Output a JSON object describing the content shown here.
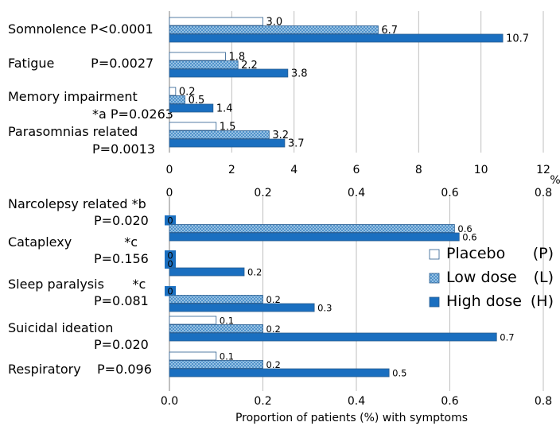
{
  "colors": {
    "placebo_fill": "#ffffff",
    "low_fill": "#7fb3dd",
    "high_fill": "#1a6fc0",
    "stroke": "#2a5d8f",
    "grid": "#bfbfbf"
  },
  "legend": {
    "placement": "right-middle",
    "items": [
      {
        "name": "Placebo",
        "abbr": "(P)"
      },
      {
        "name": "Low dose",
        "abbr": "(L)"
      },
      {
        "name": "High dose",
        "abbr": "(H)"
      }
    ]
  },
  "chart_data": [
    {
      "type": "bar",
      "orientation": "horizontal",
      "xlim": [
        0,
        12
      ],
      "xticks": [
        "0",
        "2",
        "4",
        "6",
        "8",
        "10",
        "12"
      ],
      "xunit": "%",
      "grid": true,
      "categories": [
        {
          "lines": [
            "Somnolence P<0.0001"
          ]
        },
        {
          "lines": [
            "Fatigue         P=0.0027"
          ]
        },
        {
          "lines": [
            "Memory impairment",
            "*a P=0.0263"
          ]
        },
        {
          "lines": [
            "Parasomnias related",
            "P=0.0013"
          ]
        }
      ],
      "series": [
        {
          "name": "Placebo",
          "values": [
            3.0,
            1.8,
            0.2,
            1.5
          ],
          "labels": [
            "3.0",
            "1.8",
            "0.2",
            "1.5"
          ]
        },
        {
          "name": "Low dose",
          "values": [
            6.7,
            2.2,
            0.5,
            3.2
          ],
          "labels": [
            "6.7",
            "2.2",
            "0.5",
            "3.2"
          ]
        },
        {
          "name": "High dose",
          "values": [
            10.7,
            3.8,
            1.4,
            3.7
          ],
          "labels": [
            "10.7",
            "3.8",
            "1.4",
            "3.7"
          ]
        }
      ]
    },
    {
      "type": "bar",
      "orientation": "horizontal",
      "xlim": [
        0,
        0.8
      ],
      "xticks": [
        "0",
        "0.2",
        "0.4",
        "0.6",
        "0.8"
      ],
      "xticks_bottom": [
        "0.0",
        "0.2",
        "0.4",
        "0.6",
        "0.8"
      ],
      "xlabel": "Proportion of patients (%) with symptoms",
      "grid": true,
      "categories": [
        {
          "lines": [
            "Narcolepsy related *b",
            "P=0.020"
          ]
        },
        {
          "lines": [
            "Cataplexy             *c",
            "P=0.156"
          ]
        },
        {
          "lines": [
            "Sleep paralysis       *c",
            "P=0.081"
          ]
        },
        {
          "lines": [
            "Suicidal ideation",
            "P=0.020"
          ]
        },
        {
          "lines": [
            "Respiratory    P=0.096"
          ]
        }
      ],
      "series": [
        {
          "name": "Placebo",
          "values": [
            0,
            0,
            0,
            0.1,
            0.1
          ],
          "labels": [
            "0",
            "0",
            "0",
            "0.1",
            "0.1"
          ]
        },
        {
          "name": "Low dose",
          "values": [
            0.61,
            0,
            0.2,
            0.2,
            0.2
          ],
          "labels": [
            "0.6",
            "0",
            "0.2",
            "0.2",
            "0.2"
          ]
        },
        {
          "name": "High dose",
          "values": [
            0.62,
            0.16,
            0.31,
            0.7,
            0.47
          ],
          "labels": [
            "0.6",
            "0.2",
            "0.3",
            "0.7",
            "0.5"
          ]
        }
      ]
    }
  ]
}
